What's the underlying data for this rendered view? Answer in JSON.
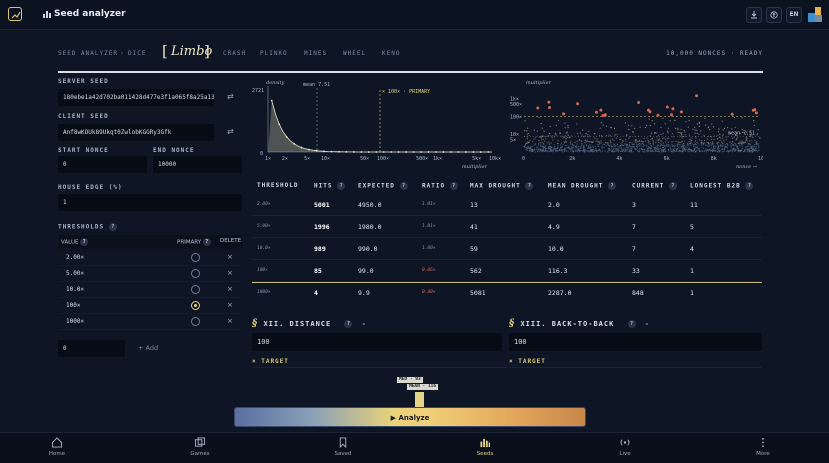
{
  "header": {
    "title": "Seed analyzer",
    "language": "EN"
  },
  "tabs": [
    {
      "label": "SEED ANALYZER",
      "active": false
    },
    {
      "label": "DICE",
      "active": false
    },
    {
      "label": "Limbo",
      "active": true
    },
    {
      "label": "CRASH",
      "active": false
    },
    {
      "label": "PLINKO",
      "active": false
    },
    {
      "label": "MINES",
      "active": false
    },
    {
      "label": "WHEEL",
      "active": false
    },
    {
      "label": "KENO",
      "active": false
    }
  ],
  "status": "10,000 NONCES · READY",
  "seeds": {
    "server_label": "SERVER SEED",
    "server_value": "180ebe1a42d702ba011428d477e3f1a065f8a25a13ea3",
    "client_label": "CLIENT SEED",
    "client_value": "Anf8wKOUk89Ukqt0ZwlobKGGRy3Gfk",
    "start_label": "START NONCE",
    "start_value": "0",
    "end_label": "END NONCE",
    "end_value": "10000",
    "edge_label": "HOUSE EDGE (%)",
    "edge_value": "1"
  },
  "thresholds": {
    "label": "THRESHOLDS",
    "col_value": "VALUE",
    "col_primary": "PRIMARY",
    "col_delete": "DELETE",
    "rows": [
      {
        "value": "2.00×",
        "primary": false
      },
      {
        "value": "5.00×",
        "primary": false
      },
      {
        "value": "10.0×",
        "primary": false
      },
      {
        "value": "100×",
        "primary": true
      },
      {
        "value": "1000×",
        "primary": false
      }
    ],
    "new_value": "0",
    "add_label": "+ Add"
  },
  "chart_data": [
    {
      "type": "area",
      "ylabel": "density",
      "xlabel": "multiplier",
      "y_max_label": "2721",
      "y_min_label": "0",
      "x_scale": "log",
      "x_ticks": [
        "1×",
        "2×",
        "5×",
        "10×",
        "50×",
        "100×",
        "500×",
        "1k×",
        "5k×",
        "10k×"
      ],
      "mean_label": "mean 7.51",
      "mean_value": 7.51,
      "primary_label": "× 100× · PRIMARY",
      "primary_value": 100
    },
    {
      "type": "scatter",
      "ylabel": "multiplier",
      "xlabel": "nonce →",
      "y_scale": "log",
      "y_ticks": [
        "1k×",
        "500×",
        "100×",
        "10×",
        "5×"
      ],
      "x_ticks": [
        "0",
        "2k",
        "4k",
        "6k",
        "8k",
        "10k"
      ],
      "mean_label": "mean 7.51",
      "primary_value": 100
    }
  ],
  "table": {
    "headers": [
      "THRESHOLD",
      "HITS",
      "EXPECTED",
      "RATIO",
      "MAX DROUGHT",
      "MEAN DROUGHT",
      "CURRENT",
      "LONGEST B2B"
    ],
    "rows": [
      {
        "threshold": "2.00×",
        "hits": "5001",
        "expected": "4950.0",
        "ratio": "1.01×",
        "max_drought": "13",
        "mean_drought": "2.0",
        "current": "3",
        "longest": "11",
        "low": false
      },
      {
        "threshold": "5.00×",
        "hits": "1996",
        "expected": "1980.0",
        "ratio": "1.01×",
        "max_drought": "41",
        "mean_drought": "4.9",
        "current": "7",
        "longest": "5",
        "low": false
      },
      {
        "threshold": "10.0×",
        "hits": "989",
        "expected": "990.0",
        "ratio": "1.00×",
        "max_drought": "59",
        "mean_drought": "10.0",
        "current": "7",
        "longest": "4",
        "low": false
      },
      {
        "threshold": "100×",
        "hits": "85",
        "expected": "99.0",
        "ratio": "0.86×",
        "max_drought": "562",
        "mean_drought": "116.3",
        "current": "33",
        "longest": "1",
        "low": true
      },
      {
        "threshold": "1000×",
        "hits": "4",
        "expected": "9.9",
        "ratio": "0.40×",
        "max_drought": "5081",
        "mean_drought": "2287.0",
        "current": "848",
        "longest": "1",
        "low": true
      }
    ]
  },
  "sections": {
    "distance_title": "XII. DISTANCE",
    "distance_value": "100",
    "b2b_title": "XIII. BACK-TO-BACK",
    "b2b_value": "100",
    "target_label": "× TARGET",
    "dash": "-"
  },
  "tooltip": {
    "med": "MED · 93",
    "mean": "MEAN · 116"
  },
  "analyze_label": "▶ Analyze",
  "bottom_nav": [
    {
      "label": "Home",
      "icon": "home-icon"
    },
    {
      "label": "Games",
      "icon": "games-icon"
    },
    {
      "label": "Saved",
      "icon": "bookmark-icon"
    },
    {
      "label": "Seeds",
      "icon": "bars-icon",
      "active": true
    },
    {
      "label": "Live",
      "icon": "broadcast-icon"
    },
    {
      "label": "More",
      "icon": "more-icon"
    }
  ],
  "colors": {
    "accent": "#e3d17a",
    "background": "#0e1626",
    "danger": "#d9675a",
    "scatter_hot": "#e26a4c"
  }
}
